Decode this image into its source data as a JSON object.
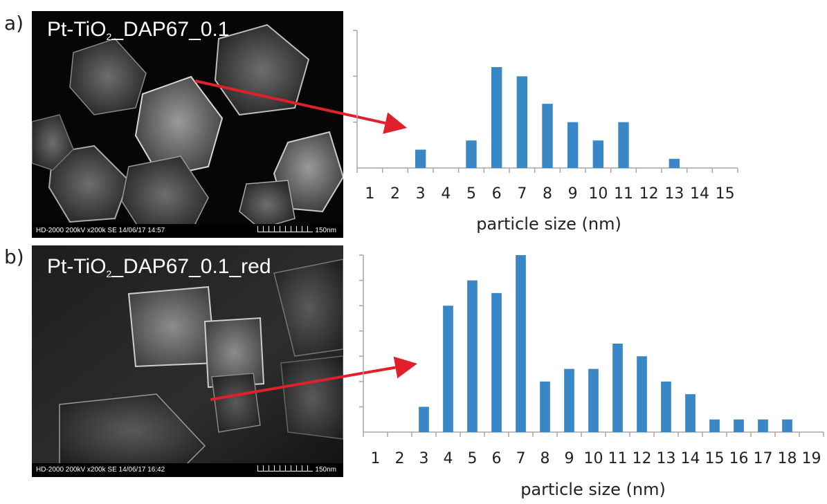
{
  "panels": [
    {
      "label": "a)",
      "sem": {
        "title_main": "Pt-TiO",
        "title_sub": "2",
        "title_rest": "_DAP67_0.1",
        "footer_meta": "HD-2000  200kV  x200k  SE  14/06/17  14:57",
        "scale_label": "150nm"
      }
    },
    {
      "label": "b)",
      "sem": {
        "title_main": "Pt-TiO",
        "title_sub": "2",
        "title_rest": "_DAP67_0.1_red",
        "footer_meta": "HD-2000  200kV  x200k  SE  14/06/17  16:42",
        "scale_label": "150nm"
      }
    }
  ],
  "colors": {
    "bar": "#3a87c8",
    "arrow": "#e0202a",
    "axis": "#a6a6a6",
    "text": "#231f20"
  },
  "chart_data": [
    {
      "type": "bar",
      "categories": [
        "1",
        "2",
        "3",
        "4",
        "5",
        "6",
        "7",
        "8",
        "9",
        "10",
        "11",
        "12",
        "13",
        "14",
        "15"
      ],
      "values": [
        0,
        0,
        2,
        0,
        3,
        11,
        10,
        7,
        5,
        3,
        5,
        0,
        1,
        0,
        0
      ],
      "xlabel": "particle size (nm)",
      "ylabel": "",
      "ylim": [
        0,
        15
      ],
      "y_gridlines": [
        5,
        10,
        15
      ],
      "grid": false,
      "ytick_labels_shown": false
    },
    {
      "type": "bar",
      "categories": [
        "1",
        "2",
        "3",
        "4",
        "5",
        "6",
        "7",
        "8",
        "9",
        "10",
        "11",
        "12",
        "13",
        "14",
        "15",
        "16",
        "17",
        "18",
        "19"
      ],
      "values": [
        0,
        0,
        2,
        10,
        12,
        11,
        14,
        4,
        5,
        5,
        7,
        6,
        4,
        3,
        1,
        1,
        1,
        1,
        0
      ],
      "xlabel": "particle size (nm)",
      "ylabel": "",
      "ylim": [
        0,
        14
      ],
      "y_gridlines": [
        2,
        4,
        6,
        8,
        10,
        12,
        14
      ],
      "grid": false,
      "ytick_labels_shown": false
    }
  ]
}
